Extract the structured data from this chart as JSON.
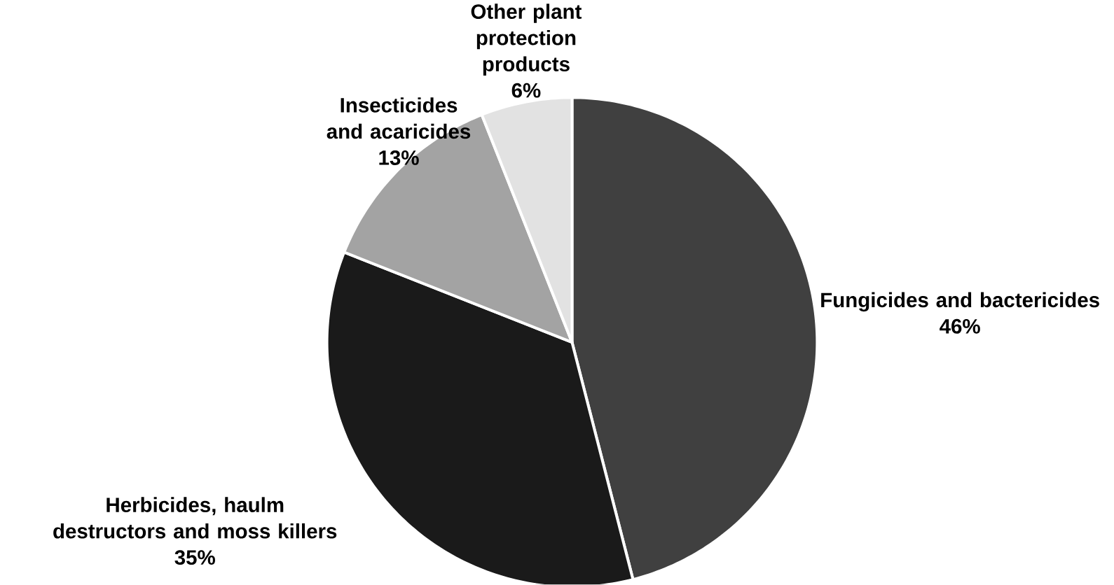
{
  "chart_data": {
    "type": "pie",
    "categories": [
      "Fungicides and bactericides",
      "Herbicides, haulm destructors and moss killers",
      "Insecticides and acaricides",
      "Other plant protection products"
    ],
    "values": [
      46,
      35,
      13,
      6
    ],
    "value_labels": [
      "46%",
      "35%",
      "13%",
      "6%"
    ],
    "colors": [
      "#404040",
      "#1a1a1a",
      "#a3a3a3",
      "#e2e2e2"
    ]
  }
}
